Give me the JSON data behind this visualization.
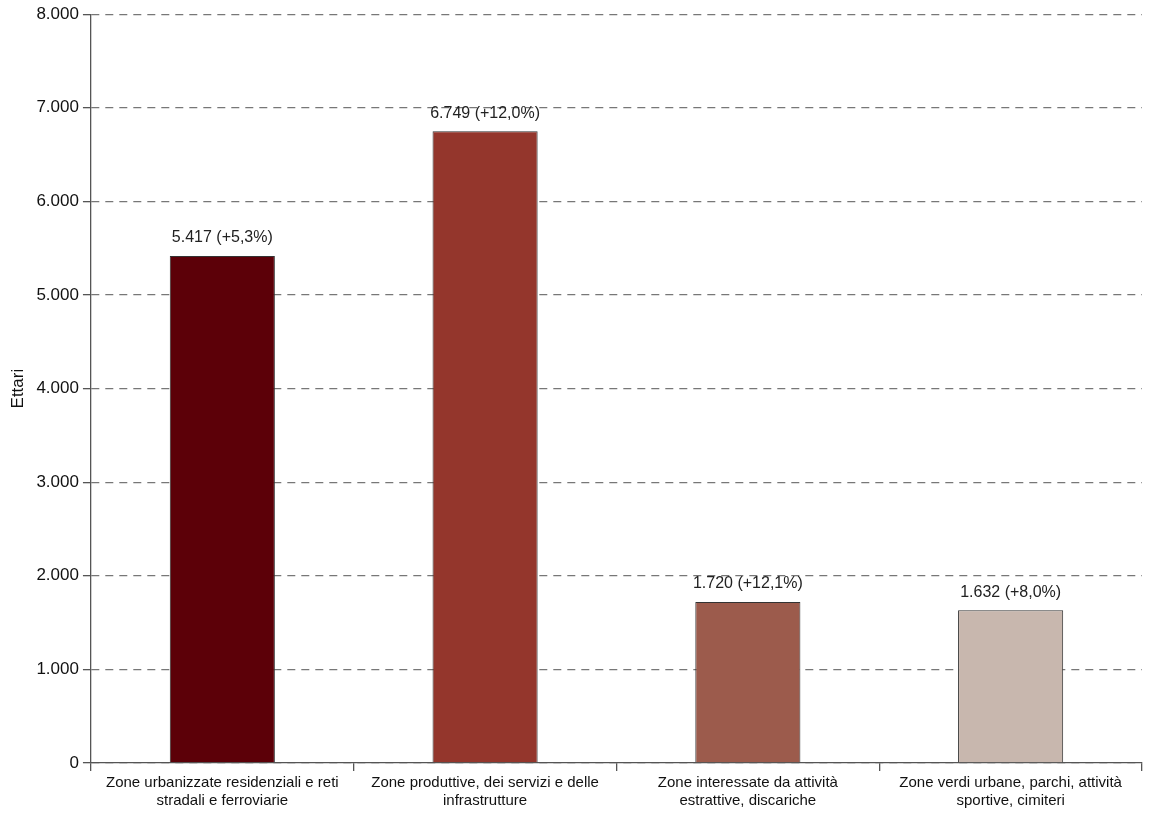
{
  "chart_data": {
    "type": "bar",
    "ylabel": "Ettari",
    "categories": [
      "Zone urbanizzate residenziali e reti stradali e ferroviarie",
      "Zone produttive, dei servizi e delle infrastrutture",
      "Zone interessate da attività estrattive, discariche",
      "Zone verdi urbane, parchi, attività sportive, cimiteri"
    ],
    "values": [
      5417,
      6749,
      1720,
      1632
    ],
    "colors": [
      "#5c0008",
      "#94362c",
      "#9c5b4c",
      "#c8b7ae"
    ],
    "value_labels": [
      "5.417 (+5,3%)",
      "6.749 (+12,0%)",
      "1.720 (+12,1%)",
      "1.632 (+8,0%)"
    ],
    "ylim": [
      0,
      8000
    ],
    "yticks": [
      {
        "value": 0,
        "label": "0"
      },
      {
        "value": 1000,
        "label": "1.000"
      },
      {
        "value": 2000,
        "label": "2.000"
      },
      {
        "value": 3000,
        "label": "3.000"
      },
      {
        "value": 4000,
        "label": "4.000"
      },
      {
        "value": 5000,
        "label": "5.000"
      },
      {
        "value": 6000,
        "label": "6.000"
      },
      {
        "value": 7000,
        "label": "7.000"
      },
      {
        "value": 8000,
        "label": "8.000"
      }
    ],
    "grid": "y",
    "legend": false
  }
}
